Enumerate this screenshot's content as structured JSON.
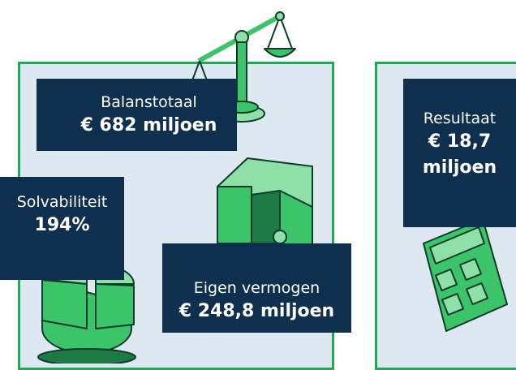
{
  "panels": [
    {
      "label": "Balanstotaal",
      "value": "€ 682 miljoen"
    },
    {
      "label": "Solvabiliteit",
      "value": "194%"
    },
    {
      "label": "Eigen vermogen",
      "value": "€ 248,8 miljoen"
    },
    {
      "label": "Resultaat",
      "value": "€ 18,7 miljoen"
    }
  ]
}
